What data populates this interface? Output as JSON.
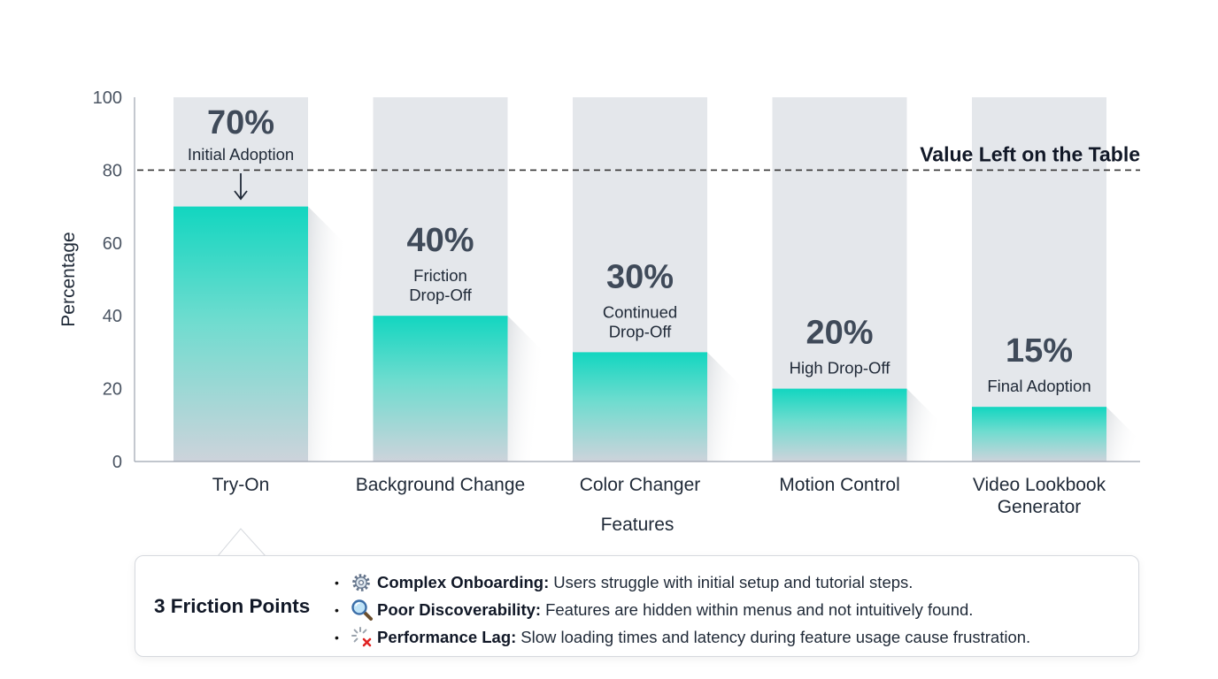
{
  "chart_data": {
    "type": "bar",
    "categories": [
      "Try-On",
      "Background Change",
      "Color Changer",
      "Motion Control",
      "Video Lookbook Generator"
    ],
    "values": [
      70,
      40,
      30,
      20,
      15
    ],
    "value_labels": [
      "70%",
      "40%",
      "30%",
      "20%",
      "15%"
    ],
    "stage_labels": [
      "Initial Adoption",
      "Friction Drop-Off",
      "Continued Drop-Off",
      "High Drop-Off",
      "Final Adoption"
    ],
    "background_max": 100,
    "xlabel": "Features",
    "ylabel": "Percentage",
    "ylim": [
      0,
      100
    ],
    "yticks": [
      0,
      20,
      40,
      60,
      80,
      100
    ],
    "reference_line": {
      "value": 80,
      "label": "Value Left on the Table",
      "style": "dashed"
    },
    "grid": false,
    "colors": {
      "bar_top": "#12d6c0",
      "bar_bottom": "#cdd4dc",
      "background_bar": "#e4e7eb"
    }
  },
  "friction_callout": {
    "title": "3 Friction Points",
    "items": [
      {
        "icon": "gear-icon",
        "title": "Complex Onboarding:",
        "text": "Users struggle with initial setup and tutorial steps."
      },
      {
        "icon": "magnifier-icon",
        "title": "Poor Discoverability:",
        "text": "Features are hidden within menus and not intuitively found."
      },
      {
        "icon": "loading-error-icon",
        "title": "Performance Lag:",
        "text": "Slow loading times and latency during feature usage cause frustration."
      }
    ]
  }
}
